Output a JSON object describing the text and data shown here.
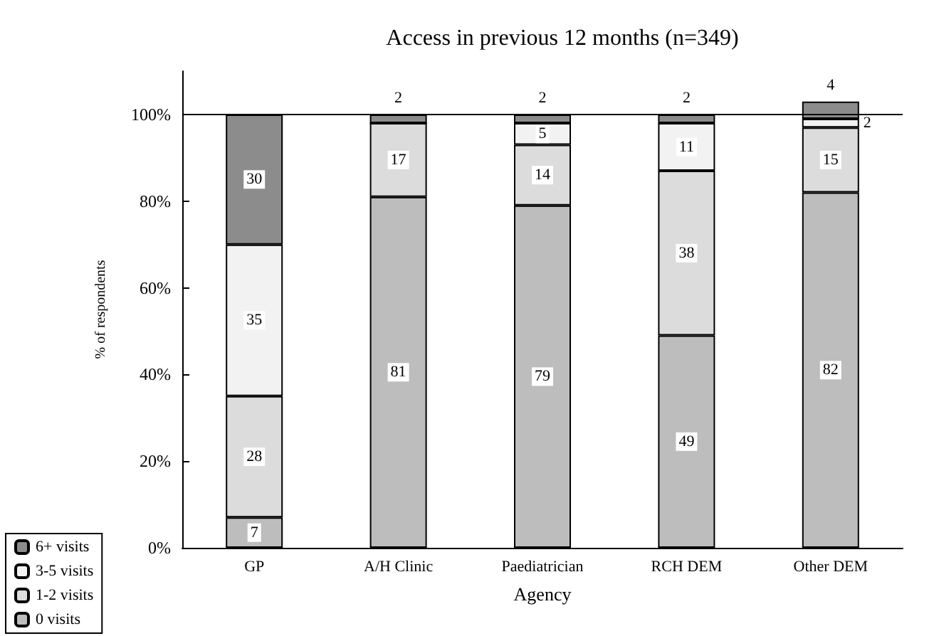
{
  "chart_data": {
    "type": "bar",
    "stacked": true,
    "title": "Access in previous 12 months (n=349)",
    "xlabel": "Agency",
    "ylabel": "% of respondents",
    "categories": [
      "GP",
      "A/H Clinic",
      "Paediatrician",
      "RCH DEM",
      "Other DEM"
    ],
    "series": [
      {
        "name": "0 visits",
        "color": "#bdbdbd",
        "values": [
          7,
          81,
          79,
          49,
          82
        ]
      },
      {
        "name": "1-2 visits",
        "color": "#dcdcdc",
        "values": [
          28,
          17,
          14,
          38,
          15
        ]
      },
      {
        "name": "3-5 visits",
        "color": "#f2f2f2",
        "values": [
          35,
          0,
          5,
          11,
          2
        ],
        "value_labels": [
          "35",
          null,
          "5",
          "11",
          "2"
        ]
      },
      {
        "name": "6+ visits",
        "color": "#8c8c8c",
        "values": [
          30,
          2,
          2,
          2,
          4
        ]
      }
    ],
    "ylim": [
      0,
      110
    ],
    "yticks": [
      {
        "value": 0,
        "label": "0%"
      },
      {
        "value": 20,
        "label": "20%"
      },
      {
        "value": 40,
        "label": "40%"
      },
      {
        "value": 60,
        "label": "60%"
      },
      {
        "value": 80,
        "label": "80%"
      },
      {
        "value": 100,
        "label": "100%"
      }
    ],
    "ref_lines": [
      {
        "axis": "y",
        "value": 100,
        "color": "#000000"
      }
    ],
    "data_labels": true,
    "grid": false,
    "legend": "bottom left"
  }
}
